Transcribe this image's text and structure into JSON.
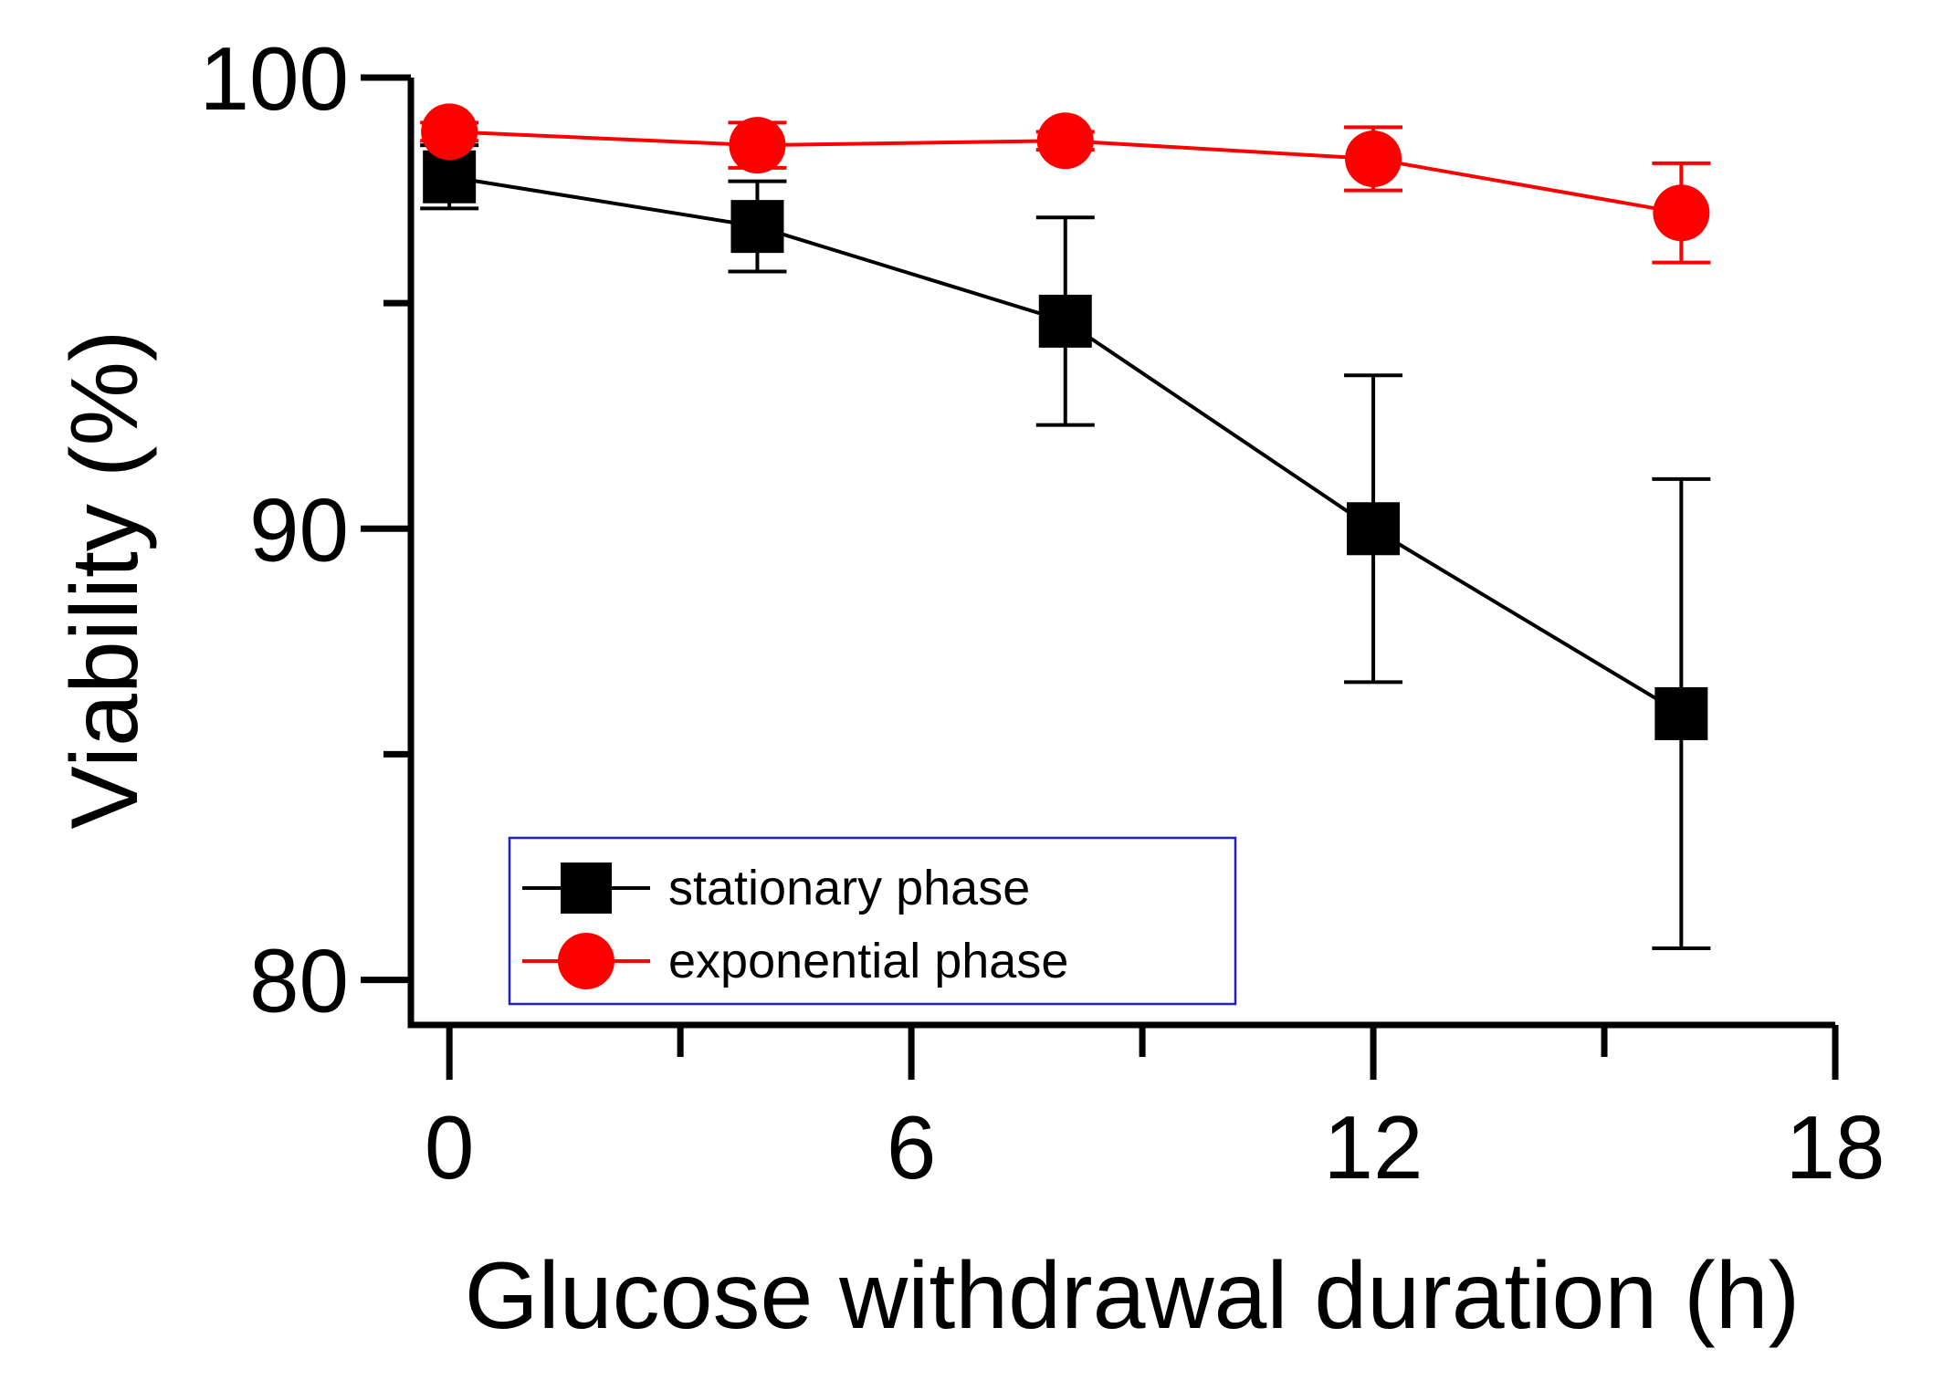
{
  "chart_data": {
    "type": "line",
    "title": "",
    "xlabel": "Glucose withdrawal duration (h)",
    "ylabel": "Viability (%)",
    "xlim": [
      -0.5,
      18
    ],
    "ylim": [
      79,
      100
    ],
    "x_ticks_major": [
      0,
      6,
      12,
      18
    ],
    "x_ticks_minor": [
      3,
      9,
      15
    ],
    "y_ticks_major": [
      80,
      90,
      100
    ],
    "y_ticks_minor": [
      85,
      95
    ],
    "x_tick_labels": [
      "0",
      "6",
      "12",
      "18"
    ],
    "y_tick_labels": [
      "80",
      "90",
      "100"
    ],
    "grid": false,
    "legend": {
      "position": "bottom-left"
    },
    "series": [
      {
        "name": "stationary phase",
        "color": "#000000",
        "marker": "square",
        "x": [
          0,
          4,
          8,
          12,
          16
        ],
        "y": [
          97.8,
          96.7,
          94.6,
          90.0,
          85.9
        ],
        "yerr": [
          0.7,
          1.0,
          2.3,
          3.4,
          5.2
        ]
      },
      {
        "name": "exponential phase",
        "color": "#ff0000",
        "marker": "circle",
        "x": [
          0,
          4,
          8,
          12,
          16
        ],
        "y": [
          98.8,
          98.5,
          98.6,
          98.2,
          97.0
        ],
        "yerr": [
          0.2,
          0.5,
          0.2,
          0.7,
          1.1
        ]
      }
    ]
  }
}
